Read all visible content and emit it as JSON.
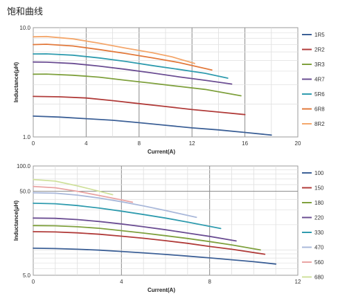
{
  "page": {
    "title": "饱和曲线"
  },
  "chart_data": [
    {
      "type": "line",
      "xlabel": "Current(A)",
      "ylabel": "Inductance(μH)",
      "xlim": [
        0,
        20
      ],
      "ylim": [
        1.0,
        10.0
      ],
      "yscale": "log",
      "xticks": [
        0,
        4,
        8,
        12,
        16,
        20
      ],
      "xtick_labels": [
        "0",
        "4",
        "8",
        "12",
        "16",
        "20"
      ],
      "yticks": [
        1.0,
        10.0
      ],
      "ytick_labels": [
        "1.0",
        "10.0"
      ],
      "grid": true,
      "legend": "right",
      "series": [
        {
          "name": "1R5",
          "color": "#3b5f96",
          "x": [
            0,
            2,
            4,
            6,
            8,
            10,
            12,
            14,
            16,
            18
          ],
          "y": [
            1.55,
            1.52,
            1.47,
            1.42,
            1.35,
            1.28,
            1.21,
            1.16,
            1.1,
            1.04
          ]
        },
        {
          "name": "2R2",
          "color": "#b03a38",
          "x": [
            0,
            2,
            4,
            6,
            8,
            10,
            12,
            14,
            16
          ],
          "y": [
            2.35,
            2.33,
            2.27,
            2.15,
            2.02,
            1.9,
            1.78,
            1.69,
            1.6
          ]
        },
        {
          "name": "3R3",
          "color": "#7ea03c",
          "x": [
            0,
            1,
            3,
            5,
            7,
            9,
            11,
            13,
            15.7
          ],
          "y": [
            3.75,
            3.76,
            3.67,
            3.52,
            3.3,
            3.1,
            2.9,
            2.72,
            2.38
          ]
        },
        {
          "name": "4R7",
          "color": "#6a4c92",
          "x": [
            0,
            1,
            3,
            5,
            7,
            9,
            11,
            13,
            15
          ],
          "y": [
            4.85,
            4.83,
            4.7,
            4.45,
            4.15,
            3.85,
            3.55,
            3.3,
            3.05
          ]
        },
        {
          "name": "5R6",
          "color": "#2e9bae",
          "x": [
            0,
            1,
            3,
            5,
            7,
            9,
            11,
            13,
            14.7
          ],
          "y": [
            5.75,
            5.76,
            5.6,
            5.28,
            4.9,
            4.5,
            4.15,
            3.82,
            3.45
          ]
        },
        {
          "name": "6R8",
          "color": "#e2783a",
          "x": [
            0,
            1,
            3,
            5,
            7,
            9,
            11,
            13.5
          ],
          "y": [
            7.0,
            7.05,
            6.8,
            6.3,
            5.8,
            5.3,
            4.8,
            4.1
          ]
        },
        {
          "name": "8R2",
          "color": "#f4a66a",
          "x": [
            0,
            1,
            3,
            5,
            7,
            9,
            10.5,
            12.2
          ],
          "y": [
            8.25,
            8.3,
            7.9,
            7.2,
            6.5,
            5.9,
            5.4,
            4.7
          ]
        }
      ]
    },
    {
      "type": "line",
      "xlabel": "Current(A)",
      "ylabel": "Inductance(μH)",
      "xlim": [
        0,
        12
      ],
      "ylim": [
        5.0,
        100.0
      ],
      "yscale": "log",
      "xticks": [
        0,
        4,
        8,
        12
      ],
      "xtick_labels": [
        "0",
        "4",
        "8",
        "12"
      ],
      "yticks": [
        5.0,
        50.0,
        100.0
      ],
      "ytick_labels": [
        "5.0",
        "50.0",
        "100.0"
      ],
      "grid": true,
      "legend": "right",
      "series": [
        {
          "name": "100",
          "color": "#3b5f96",
          "x": [
            0,
            1,
            2,
            3,
            4,
            5,
            6,
            7,
            8,
            9,
            10,
            11
          ],
          "y": [
            10.5,
            10.4,
            10.2,
            9.95,
            9.6,
            9.25,
            8.85,
            8.45,
            8.05,
            7.65,
            7.25,
            6.8
          ]
        },
        {
          "name": "150",
          "color": "#b03a38",
          "x": [
            0,
            1,
            2,
            3,
            4,
            5,
            6,
            7,
            8,
            9,
            10.5
          ],
          "y": [
            16.5,
            16.4,
            16.0,
            15.4,
            14.6,
            13.8,
            12.9,
            12.0,
            11.0,
            10.2,
            8.9
          ]
        },
        {
          "name": "180",
          "color": "#7ea03c",
          "x": [
            0,
            1,
            2,
            3,
            4,
            5,
            6,
            7,
            8,
            9,
            10.3
          ],
          "y": [
            19.5,
            19.4,
            18.9,
            18.1,
            17.0,
            15.9,
            14.8,
            13.7,
            12.6,
            11.5,
            10.0
          ]
        },
        {
          "name": "220",
          "color": "#6a4c92",
          "x": [
            0,
            1,
            2,
            3,
            4,
            5,
            6,
            7,
            8,
            9.2
          ],
          "y": [
            24.0,
            23.8,
            23.0,
            21.8,
            20.4,
            18.9,
            17.4,
            15.9,
            14.5,
            12.8
          ]
        },
        {
          "name": "330",
          "color": "#2e9bae",
          "x": [
            0,
            1,
            2,
            3,
            4,
            5,
            6,
            7,
            8.5
          ],
          "y": [
            36.0,
            35.5,
            33.8,
            31.5,
            29.0,
            26.4,
            24.0,
            21.5,
            18.0
          ]
        },
        {
          "name": "470",
          "color": "#a9b8da",
          "x": [
            0,
            1,
            2,
            3,
            4,
            5,
            6,
            7.4
          ],
          "y": [
            48.0,
            47.5,
            45.0,
            41.5,
            37.5,
            33.5,
            29.5,
            24.5
          ]
        },
        {
          "name": "560",
          "color": "#e9a3a2",
          "x": [
            0,
            1,
            2,
            3,
            4,
            4.5
          ],
          "y": [
            57.0,
            55.0,
            50.0,
            44.5,
            39.5,
            37.0
          ]
        },
        {
          "name": "680",
          "color": "#cfe09b",
          "x": [
            0,
            1,
            2,
            3,
            3.6
          ],
          "y": [
            69.0,
            66.0,
            58.0,
            50.0,
            45.5
          ]
        }
      ]
    }
  ]
}
